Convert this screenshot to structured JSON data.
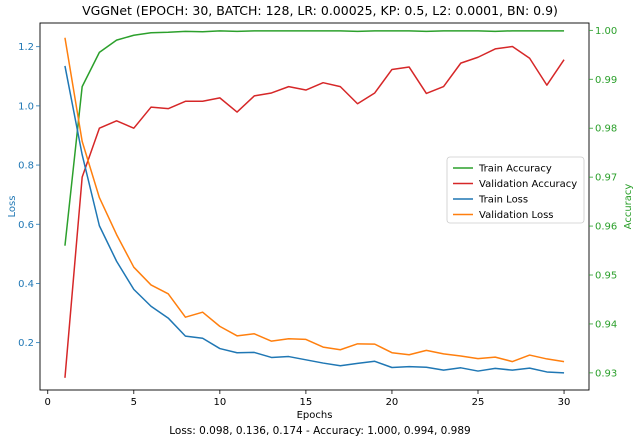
{
  "chart_data": {
    "type": "line",
    "title": "VGGNet (EPOCH: 30, BATCH: 128, LR: 0.00025, KP: 0.5, L2: 0.0001, BN: 0.9)",
    "caption": "Loss: 0.098, 0.136, 0.174 - Accuracy: 1.000, 0.994, 0.989",
    "xlabel": "Epochs",
    "ylabel_left": "Loss",
    "ylabel_right": "Accuracy",
    "xlim": [
      -0.45,
      31.45
    ],
    "ylim_left": [
      0.04,
      1.28
    ],
    "ylim_right": [
      0.9265,
      1.0015
    ],
    "x_ticks": [
      0,
      5,
      10,
      15,
      20,
      25,
      30
    ],
    "y_left_ticks": [
      "0.2",
      "0.4",
      "0.6",
      "0.8",
      "1.0",
      "1.2"
    ],
    "y_right_ticks": [
      "0.93",
      "0.94",
      "0.95",
      "0.96",
      "0.97",
      "0.98",
      "0.99",
      "1.00"
    ],
    "legend_position": "center-right",
    "x": [
      1,
      2,
      3,
      4,
      5,
      6,
      7,
      8,
      9,
      10,
      11,
      12,
      13,
      14,
      15,
      16,
      17,
      18,
      19,
      20,
      21,
      22,
      23,
      24,
      25,
      26,
      27,
      28,
      29,
      30
    ],
    "series": [
      {
        "name": "Train Accuracy",
        "axis": "right",
        "color": "#2ca02c",
        "values": [
          0.956,
          0.9885,
          0.9955,
          0.998,
          0.999,
          0.9995,
          0.9996,
          0.9998,
          0.9997,
          0.9999,
          0.9998,
          0.9999,
          0.9999,
          0.9999,
          0.9999,
          0.9999,
          0.9999,
          0.9998,
          0.9999,
          0.9999,
          0.9999,
          0.9998,
          0.9999,
          0.9999,
          0.9999,
          0.9998,
          0.9999,
          0.9999,
          0.9999,
          0.9999
        ]
      },
      {
        "name": "Validation Accuracy",
        "axis": "right",
        "color": "#d62728",
        "values": [
          0.929,
          0.97,
          0.98,
          0.9815,
          0.98,
          0.9843,
          0.984,
          0.9855,
          0.9855,
          0.9862,
          0.9833,
          0.9866,
          0.9872,
          0.9885,
          0.9878,
          0.9893,
          0.9885,
          0.985,
          0.9872,
          0.992,
          0.9925,
          0.9871,
          0.9885,
          0.9933,
          0.9945,
          0.9962,
          0.9967,
          0.9943,
          0.9888,
          0.994
        ]
      },
      {
        "name": "Train Loss",
        "axis": "left",
        "color": "#1f77b4",
        "values": [
          1.135,
          0.835,
          0.595,
          0.475,
          0.38,
          0.323,
          0.283,
          0.222,
          0.215,
          0.18,
          0.166,
          0.167,
          0.15,
          0.153,
          0.142,
          0.131,
          0.122,
          0.13,
          0.137,
          0.116,
          0.119,
          0.117,
          0.107,
          0.115,
          0.104,
          0.113,
          0.107,
          0.114,
          0.101,
          0.098
        ]
      },
      {
        "name": "Validation Loss",
        "axis": "left",
        "color": "#ff7f0e",
        "values": [
          1.23,
          0.88,
          0.69,
          0.565,
          0.455,
          0.395,
          0.365,
          0.286,
          0.303,
          0.255,
          0.223,
          0.23,
          0.205,
          0.213,
          0.211,
          0.185,
          0.176,
          0.196,
          0.195,
          0.166,
          0.159,
          0.174,
          0.162,
          0.155,
          0.146,
          0.151,
          0.136,
          0.158,
          0.145,
          0.136
        ]
      }
    ]
  }
}
